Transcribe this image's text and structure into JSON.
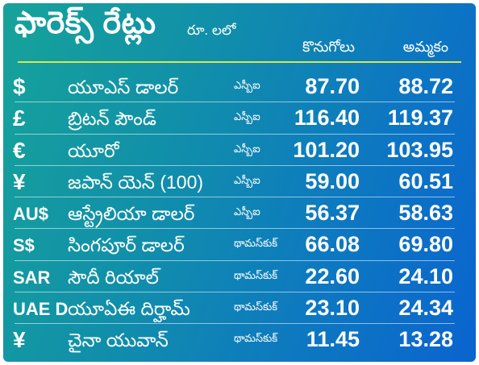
{
  "title": "ఫారెక్స్ రేట్లు",
  "unit": "రూ. లలో",
  "columns": {
    "buy": "కొనుగోలు",
    "sell": "అమ్మకం"
  },
  "rows": [
    {
      "symbol": "$",
      "name": "యూఎస్ డాలర్",
      "source": "ఎస్బీఐ",
      "buy": "87.70",
      "sell": "88.72"
    },
    {
      "symbol": "£",
      "name": "బ్రిటన్ పౌండ్",
      "source": "ఎస్బీఐ",
      "buy": "116.40",
      "sell": "119.37"
    },
    {
      "symbol": "€",
      "name": "యూరో",
      "source": "ఎస్బీఐ",
      "buy": "101.20",
      "sell": "103.95"
    },
    {
      "symbol": "¥",
      "name": "జపాన్ యెన్ (100)",
      "source": "ఎస్బీఐ",
      "buy": "59.00",
      "sell": "60.51"
    },
    {
      "symbol": "AU$",
      "name": "ఆస్ట్రేలియా డాలర్",
      "source": "ఎస్బీఐ",
      "buy": "56.37",
      "sell": "58.63"
    },
    {
      "symbol": "S$",
      "name": "సింగపూర్ డాలర్",
      "source": "థామస్‌కుక్",
      "buy": "66.08",
      "sell": "69.80"
    },
    {
      "symbol": "SAR",
      "name": "సౌదీ రియాల్",
      "source": "థామస్‌కుక్",
      "buy": "22.60",
      "sell": "24.10"
    },
    {
      "symbol": "UAE D",
      "name": "యూఏఈ దిర్హామ్",
      "source": "థామస్‌కుక్",
      "buy": "23.10",
      "sell": "24.34"
    },
    {
      "symbol": "¥",
      "name": "చైనా యువాన్",
      "source": "థామస్‌కుక్",
      "buy": "11.45",
      "sell": "13.28"
    }
  ]
}
